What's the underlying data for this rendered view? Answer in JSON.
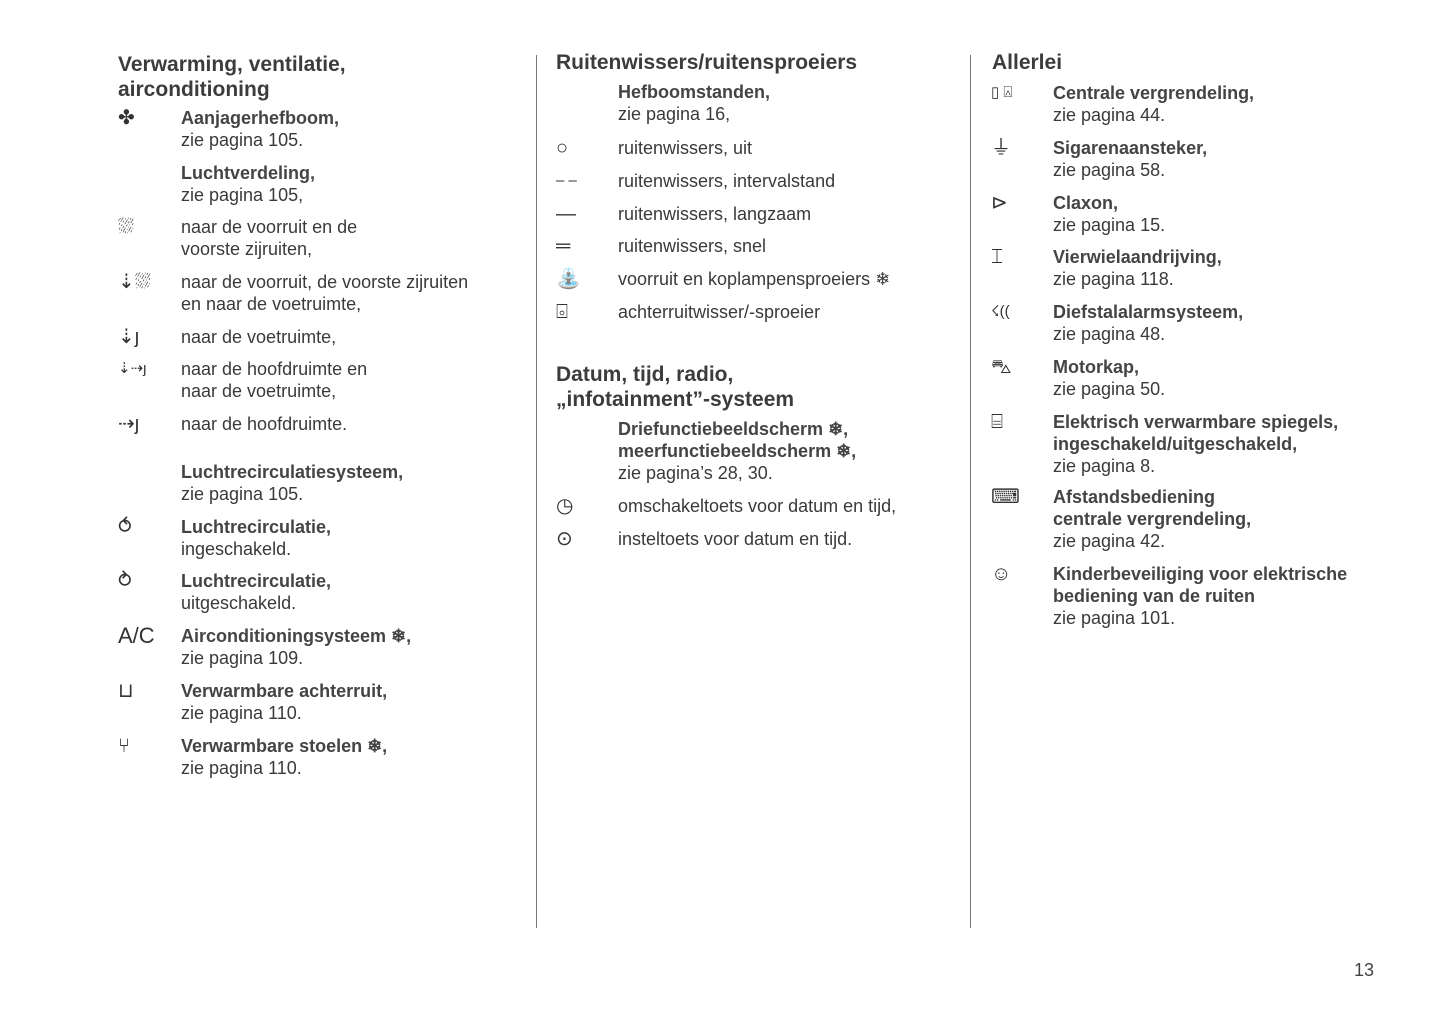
{
  "columns": [
    {
      "heading": [
        "Verwarming, ventilatie,",
        "airconditioning"
      ],
      "entries": [
        {
          "icon": "fan-icon",
          "glyph": "✤",
          "bold": [
            "Aanjagerhefboom,"
          ],
          "normal": [
            "zie pagina 105."
          ]
        },
        {
          "icon": "",
          "glyph": "",
          "bold": [
            "Luchtverdeling,"
          ],
          "normal": [
            "zie pagina 105,"
          ]
        },
        {
          "icon": "windshield-defrost-icon",
          "glyph": "⛆",
          "bold": [],
          "normal": [
            "naar de voorruit en de",
            "voorste zijruiten,"
          ]
        },
        {
          "icon": "windshield-and-footwell-icon",
          "glyph": "⇣⛆",
          "bold": [],
          "normal": [
            "naar de voorruit, de voorste zijruiten",
            "en naar de voetruimte,"
          ]
        },
        {
          "icon": "footwell-icon",
          "glyph": "⇣ȷ",
          "bold": [],
          "normal": [
            "naar de voetruimte,"
          ]
        },
        {
          "icon": "head-and-footwell-icon",
          "glyph": "⇣⇢ȷ",
          "bold": [],
          "normal": [
            "naar de hoofdruimte en",
            "naar de voetruimte,"
          ]
        },
        {
          "icon": "head-icon",
          "glyph": "⇢ȷ",
          "bold": [],
          "normal": [
            "naar de hoofdruimte."
          ]
        },
        {
          "icon": "",
          "glyph": "",
          "bold": [
            "Luchtrecirculatiesysteem,"
          ],
          "normal": [
            "zie pagina 105."
          ]
        },
        {
          "icon": "recirculation-on-icon",
          "glyph": "⥀",
          "bold": [
            "Luchtrecirculatie,"
          ],
          "normal": [
            "ingeschakeld."
          ]
        },
        {
          "icon": "recirculation-off-icon",
          "glyph": "⥁",
          "bold": [
            "Luchtrecirculatie,"
          ],
          "normal": [
            "uitgeschakeld."
          ]
        },
        {
          "icon": "ac-icon",
          "glyph": "A/C",
          "bold": [
            "Airconditioningsysteem ❄,"
          ],
          "normal": [
            "zie pagina 109."
          ]
        },
        {
          "icon": "rear-window-heating-icon",
          "glyph": "⊔",
          "bold": [
            "Verwarmbare achterruit,"
          ],
          "normal": [
            "zie pagina 110."
          ]
        },
        {
          "icon": "heated-seat-icon",
          "glyph": "⑂",
          "bold": [
            "Verwarmbare stoelen ❄,"
          ],
          "normal": [
            "zie pagina 110."
          ]
        }
      ]
    },
    {
      "heading": [
        "Ruitenwissers/ruitensproeiers"
      ],
      "entries": [
        {
          "icon": "",
          "glyph": "",
          "bold": [
            "Hefboomstanden,"
          ],
          "normal": [
            "zie pagina 16,"
          ]
        },
        {
          "icon": "wiper-off-icon",
          "glyph": "○",
          "bold": [],
          "normal": [
            "ruitenwissers, uit"
          ]
        },
        {
          "icon": "wiper-interval-icon",
          "glyph": "‒ ‒",
          "bold": [],
          "normal": [
            "ruitenwissers, intervalstand"
          ]
        },
        {
          "icon": "wiper-slow-icon",
          "glyph": "—",
          "bold": [],
          "normal": [
            "ruitenwissers, langzaam"
          ]
        },
        {
          "icon": "wiper-fast-icon",
          "glyph": "═",
          "bold": [],
          "normal": [
            "ruitenwissers, snel"
          ]
        },
        {
          "icon": "washer-icon",
          "glyph": "⛲",
          "bold": [],
          "normal": [
            "voorruit en koplampensproeiers ❄"
          ]
        },
        {
          "icon": "rear-wiper-icon",
          "glyph": "⌻",
          "bold": [],
          "normal": [
            "achterruitwisser/-sproeier"
          ]
        },
        {
          "icon": "",
          "glyph": "",
          "bold": [],
          "normal": []
        },
        {
          "icon": "",
          "glyph": "",
          "bold": [
            "Driefunctiebeeldscherm ❄,",
            "meerfunctiebeeldscherm ❄,"
          ],
          "normal": [
            "zie pagina’s 28, 30."
          ]
        },
        {
          "icon": "clock-toggle-icon",
          "glyph": "◷",
          "bold": [],
          "normal": [
            "omschakeltoets voor datum en tijd,"
          ]
        },
        {
          "icon": "set-button-icon",
          "glyph": "⊙",
          "bold": [],
          "normal": [
            "insteltoets voor datum en tijd."
          ]
        }
      ],
      "heading2": [
        "Datum, tijd, radio,",
        "„infotainment”-systeem"
      ]
    },
    {
      "heading": [
        "Allerlei"
      ],
      "entries": [
        {
          "icon": "central-locking-icon",
          "glyph": "▯ ⍓",
          "bold": [
            "Centrale vergrendeling,"
          ],
          "normal": [
            "zie pagina 44."
          ]
        },
        {
          "icon": "cigarette-lighter-icon",
          "glyph": "⏚",
          "bold": [
            "Sigarenaansteker,"
          ],
          "normal": [
            "zie pagina 58."
          ]
        },
        {
          "icon": "horn-icon",
          "glyph": "⊳",
          "bold": [
            "Claxon,"
          ],
          "normal": [
            "zie pagina 15."
          ]
        },
        {
          "icon": "four-wheel-drive-icon",
          "glyph": "⌶",
          "bold": [
            "Vierwielaandrijving,"
          ],
          "normal": [
            "zie pagina 118."
          ]
        },
        {
          "icon": "alarm-icon",
          "glyph": "☇((",
          "bold": [
            "Diefstalalarmsysteem,"
          ],
          "normal": [
            "zie pagina 48."
          ]
        },
        {
          "icon": "bonnet-icon",
          "glyph": "⛍",
          "bold": [
            "Motorkap,"
          ],
          "normal": [
            "zie pagina 50."
          ]
        },
        {
          "icon": "heated-mirror-icon",
          "glyph": "⌸",
          "bold": [
            "Elektrisch verwarmbare spiegels,",
            "ingeschakeld/uitgeschakeld,"
          ],
          "normal": [
            "zie pagina 8."
          ]
        },
        {
          "icon": "remote-key-icon",
          "glyph": "⌨",
          "bold": [
            "Afstandsbediening",
            "centrale vergrendeling,"
          ],
          "normal": [
            "zie pagina 42."
          ]
        },
        {
          "icon": "child-lock-icon",
          "glyph": "☺",
          "bold": [
            "Kinderbeveiliging voor elektrische",
            "bediening van de ruiten"
          ],
          "normal": [
            "zie pagina 101."
          ]
        }
      ]
    }
  ],
  "page_number": "13"
}
